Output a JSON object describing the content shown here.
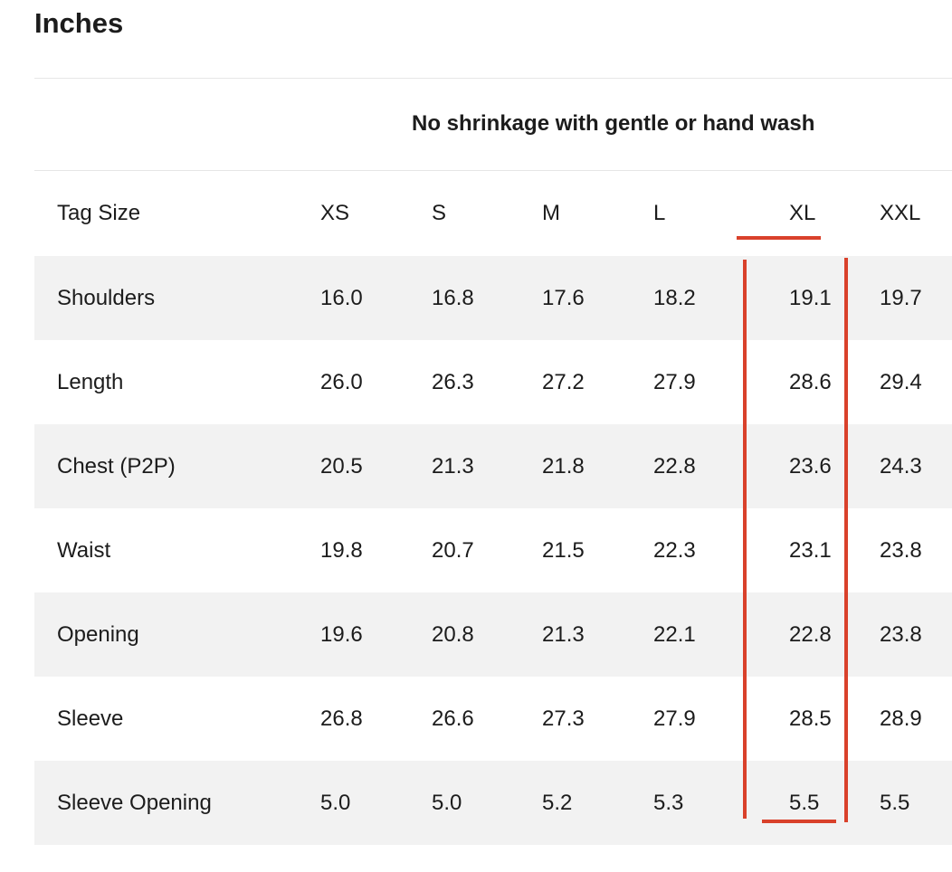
{
  "heading": "Inches",
  "caption": "No shrinkage with gentle or hand wash",
  "table": {
    "header": [
      "Tag Size",
      "XS",
      "S",
      "M",
      "L",
      "XL",
      "XXL"
    ],
    "rows": [
      {
        "label": "Shoulders",
        "values": [
          "16.0",
          "16.8",
          "17.6",
          "18.2",
          "19.1",
          "19.7"
        ]
      },
      {
        "label": "Length",
        "values": [
          "26.0",
          "26.3",
          "27.2",
          "27.9",
          "28.6",
          "29.4"
        ]
      },
      {
        "label": "Chest (P2P)",
        "values": [
          "20.5",
          "21.3",
          "21.8",
          "22.8",
          "23.6",
          "24.3"
        ]
      },
      {
        "label": "Waist",
        "values": [
          "19.8",
          "20.7",
          "21.5",
          "22.3",
          "23.1",
          "23.8"
        ]
      },
      {
        "label": "Opening",
        "values": [
          "19.6",
          "20.8",
          "21.3",
          "22.1",
          "22.8",
          "23.8"
        ]
      },
      {
        "label": "Sleeve",
        "values": [
          "26.8",
          "26.6",
          "27.3",
          "27.9",
          "28.5",
          "28.9"
        ]
      },
      {
        "label": "Sleeve Opening",
        "values": [
          "5.0",
          "5.0",
          "5.2",
          "5.3",
          "5.5",
          "5.5"
        ]
      }
    ]
  },
  "highlight": {
    "column": "XL",
    "color": "#d9412b"
  },
  "colors": {
    "stripe": "#f2f2f2",
    "rule": "#e6e6e6",
    "text": "#1c1c1c"
  }
}
